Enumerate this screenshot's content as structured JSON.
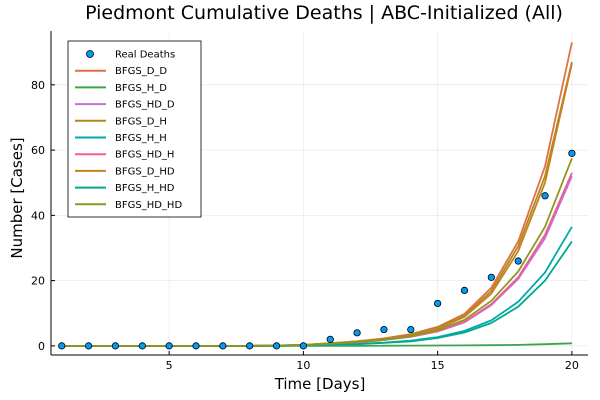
{
  "chart_data": {
    "type": "line",
    "title": "Piedmont Cumulative Deaths | ABC-Initialized (All)",
    "xlabel": "Time [Days]",
    "ylabel": "Number [Cases]",
    "xlim": [
      0.6,
      20.6
    ],
    "ylim": [
      -2.8,
      96.5
    ],
    "xticks": [
      5,
      10,
      15,
      20
    ],
    "yticks": [
      0,
      20,
      40,
      60,
      80
    ],
    "grid": true,
    "legend_position": "top-left",
    "x": [
      1,
      2,
      3,
      4,
      5,
      6,
      7,
      8,
      9,
      10,
      11,
      12,
      13,
      14,
      15,
      16,
      17,
      18,
      19,
      20
    ],
    "scatter": {
      "name": "Real Deaths",
      "color": "#009af9",
      "values": [
        0,
        0,
        0,
        0,
        0,
        0,
        0,
        0,
        0,
        0,
        2,
        4,
        5,
        5,
        13,
        17,
        21,
        26,
        46,
        59
      ]
    },
    "series": [
      {
        "name": "BFGS_D_D",
        "color": "#e26f46",
        "values": [
          0,
          0,
          0,
          0,
          0,
          0,
          0,
          0,
          0.1,
          0.3,
          0.8,
          1.4,
          2.3,
          3.6,
          5.8,
          9.8,
          17.8,
          32.0,
          55.0,
          93.0
        ]
      },
      {
        "name": "BFGS_H_D",
        "color": "#3da44d",
        "values": [
          0,
          0,
          0,
          0,
          0,
          0,
          0,
          0,
          0,
          0,
          0,
          0,
          0.05,
          0.08,
          0.1,
          0.15,
          0.2,
          0.3,
          0.5,
          0.8
        ]
      },
      {
        "name": "BFGS_HD_D",
        "color": "#c271d2",
        "values": [
          0,
          0,
          0,
          0,
          0,
          0,
          0,
          0,
          0.1,
          0.2,
          0.6,
          1.1,
          1.8,
          2.8,
          4.4,
          7.2,
          12.5,
          20.5,
          33.0,
          52.0
        ]
      },
      {
        "name": "BFGS_D_H",
        "color": "#ac8d18",
        "values": [
          0,
          0,
          0,
          0,
          0,
          0,
          0,
          0,
          0.1,
          0.3,
          0.8,
          1.4,
          2.2,
          3.5,
          5.5,
          9.3,
          16.8,
          30.5,
          52.0,
          87.0
        ]
      },
      {
        "name": "BFGS_H_H",
        "color": "#00a9ad",
        "values": [
          0,
          0,
          0,
          0,
          0,
          0,
          0,
          0,
          0,
          0.1,
          0.3,
          0.6,
          1.0,
          1.6,
          2.7,
          4.6,
          7.8,
          13.5,
          22.5,
          36.5
        ]
      },
      {
        "name": "BFGS_HD_H",
        "color": "#ed5e93",
        "values": [
          0,
          0,
          0,
          0,
          0,
          0,
          0,
          0,
          0.1,
          0.2,
          0.6,
          1.1,
          1.8,
          2.8,
          4.5,
          7.4,
          12.8,
          21.0,
          34.0,
          53.0
        ]
      },
      {
        "name": "BFGS_D_HD",
        "color": "#c68125",
        "values": [
          0,
          0,
          0,
          0,
          0,
          0,
          0,
          0,
          0.1,
          0.3,
          0.8,
          1.3,
          2.1,
          3.4,
          5.2,
          8.9,
          16.0,
          29.0,
          50.0,
          86.5
        ]
      },
      {
        "name": "BFGS_H_HD",
        "color": "#00a98d",
        "values": [
          0,
          0,
          0,
          0,
          0,
          0,
          0,
          0,
          0,
          0.1,
          0.3,
          0.5,
          0.9,
          1.4,
          2.4,
          4.1,
          7.0,
          12.0,
          20.0,
          32.0
        ]
      },
      {
        "name": "BFGS_HD_HD",
        "color": "#8e971d",
        "values": [
          0,
          0,
          0,
          0,
          0,
          0,
          0,
          0,
          0.1,
          0.2,
          0.7,
          1.2,
          1.9,
          3.0,
          4.8,
          8.0,
          13.8,
          22.8,
          36.5,
          57.5
        ]
      }
    ]
  }
}
